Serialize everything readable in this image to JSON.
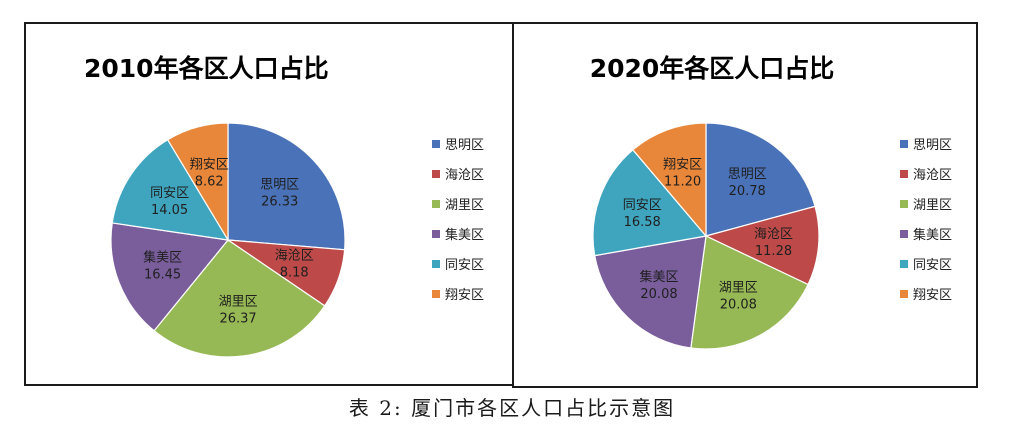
{
  "caption": "表 2: 厦门市各区人口占比示意图",
  "colors": {
    "思明区": "#4a72b8",
    "海沧区": "#bd4a48",
    "湖里区": "#97b955",
    "集美区": "#7a5e9c",
    "同安区": "#3fa5bf",
    "翔安区": "#e8873a"
  },
  "chart_data": [
    {
      "type": "pie",
      "title": "2010年各区人口占比",
      "categories": [
        "思明区",
        "海沧区",
        "湖里区",
        "集美区",
        "同安区",
        "翔安区"
      ],
      "values": [
        26.33,
        8.18,
        26.37,
        16.45,
        14.05,
        8.62
      ],
      "data_labels": [
        "26.33",
        "8.18",
        "26.37",
        "16.45",
        "14.05",
        "8.62"
      ],
      "legend": [
        "思明区",
        "海沧区",
        "湖里区",
        "集美区",
        "同安区",
        "翔安区"
      ],
      "legend_position": "right"
    },
    {
      "type": "pie",
      "title": "2020年各区人口占比",
      "categories": [
        "思明区",
        "海沧区",
        "湖里区",
        "集美区",
        "同安区",
        "翔安区"
      ],
      "values": [
        20.78,
        11.28,
        20.08,
        20.08,
        16.58,
        11.2
      ],
      "data_labels": [
        "20.78",
        "11.28",
        "20.08",
        "20.08",
        "16.58",
        "11.20"
      ],
      "legend": [
        "思明区",
        "海沧区",
        "湖里区",
        "集美区",
        "同安区",
        "翔安区"
      ],
      "legend_position": "right"
    }
  ]
}
